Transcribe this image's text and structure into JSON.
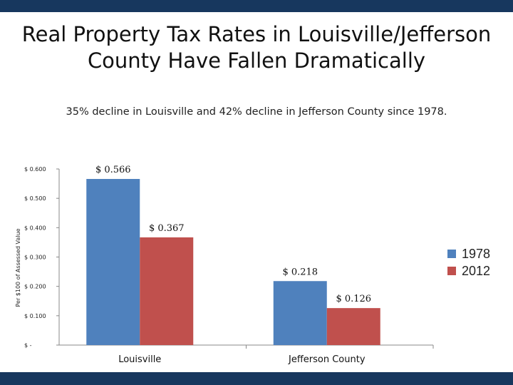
{
  "slide": {
    "title_line1": "Real Property Tax Rates in Louisville/Jefferson",
    "title_line2": "County Have Fallen Dramatically",
    "subtitle": "35% decline in Louisville and 42% decline in Jefferson County since 1978.",
    "colors": {
      "band": "#17375e"
    }
  },
  "chart_data": {
    "type": "bar",
    "title": "",
    "xlabel": "",
    "ylabel": "Per $100 of Assessed Value",
    "categories": [
      "Louisville",
      "Jefferson County"
    ],
    "series": [
      {
        "name": "1978",
        "color": "#4f81bd",
        "values": [
          0.566,
          0.218
        ],
        "labels": [
          "$ 0.566",
          "$ 0.218"
        ]
      },
      {
        "name": "2012",
        "color": "#c0504d",
        "values": [
          0.367,
          0.126
        ],
        "labels": [
          "$ 0.367",
          "$ 0.126"
        ]
      }
    ],
    "ylim": [
      0,
      0.6
    ],
    "yticks": [
      0,
      0.1,
      0.2,
      0.3,
      0.4,
      0.5,
      0.6
    ],
    "ytick_labels": [
      "$ -",
      "$ 0.100",
      "$ 0.200",
      "$ 0.300",
      "$ 0.400",
      "$ 0.500",
      "$ 0.600"
    ],
    "legend_position": "right",
    "grid": false
  }
}
